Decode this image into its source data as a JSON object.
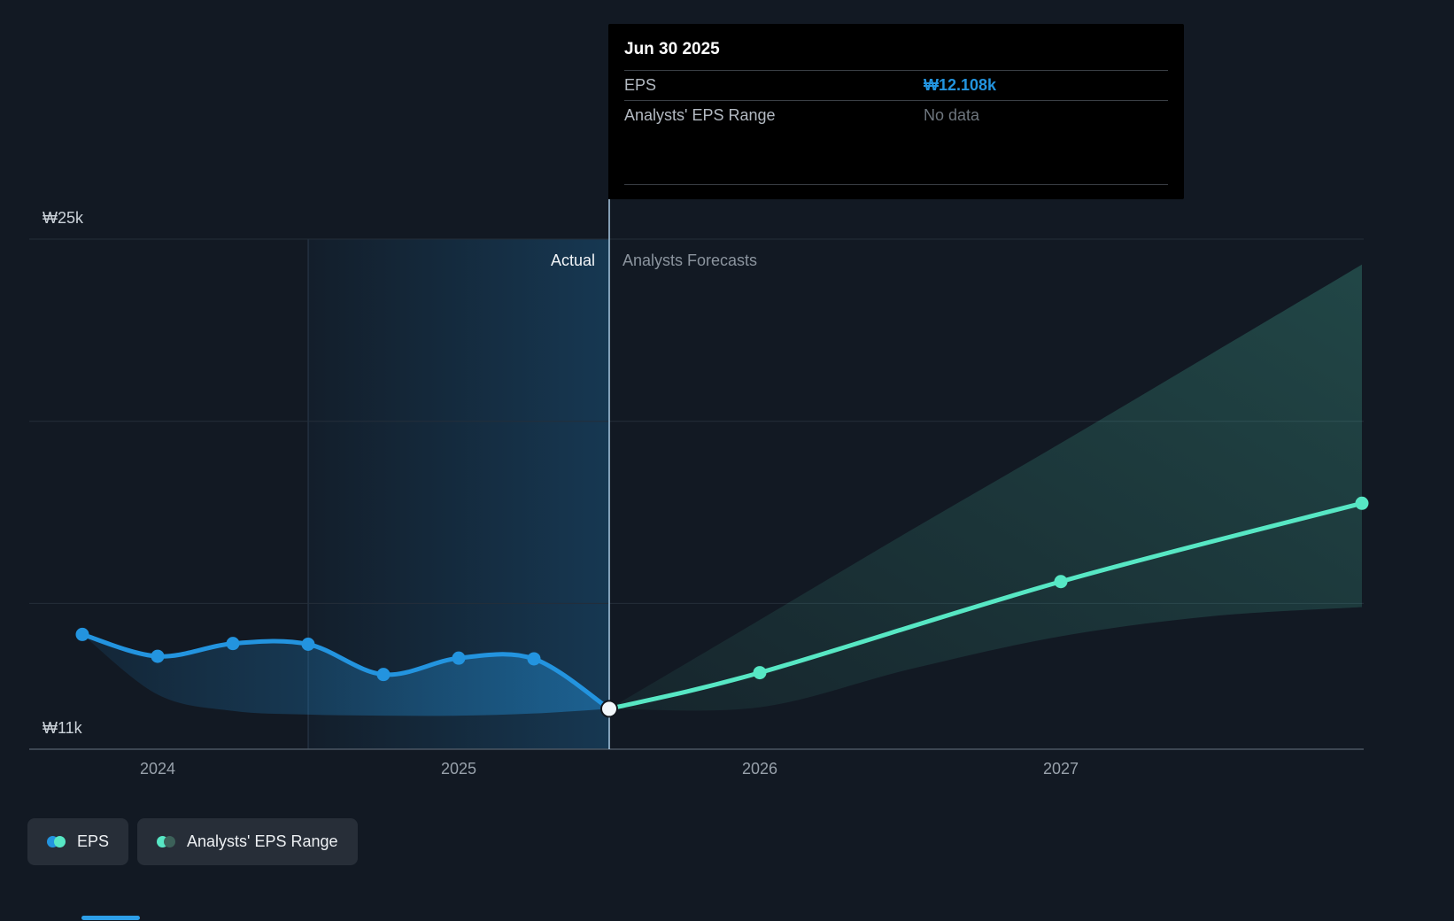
{
  "tooltip": {
    "title": "Jun 30 2025",
    "rows": [
      {
        "label": "EPS",
        "value": "₩12.108k",
        "value_color": "#2394df"
      },
      {
        "label": "Analysts' EPS Range",
        "value": "No data",
        "value_color": "#6e767e"
      }
    ]
  },
  "legend": {
    "items": [
      {
        "label": "EPS",
        "colors": [
          "#2394df",
          "#57e7c4"
        ]
      },
      {
        "label": "Analysts' EPS Range",
        "colors": [
          "#57e7c4",
          "#3c6159"
        ]
      }
    ]
  },
  "chart_data": {
    "type": "line",
    "title": "EPS actual and analysts forecast",
    "currency": "KRW",
    "ylim": [
      11,
      25
    ],
    "xlim": [
      2023.57,
      2028.0
    ],
    "grid": true,
    "y_axis": {
      "ticks": [
        {
          "value": 25,
          "label": "₩25k"
        },
        {
          "value": 11,
          "label": "₩11k"
        }
      ],
      "gridline_values": [
        25,
        20,
        15
      ],
      "baseline": 11
    },
    "x_axis": {
      "ticks": [
        {
          "value": 2024,
          "label": "2024"
        },
        {
          "value": 2025,
          "label": "2025"
        },
        {
          "value": 2026,
          "label": "2026"
        },
        {
          "value": 2027,
          "label": "2027"
        }
      ]
    },
    "divider_x": 2025.5,
    "highlight_range": {
      "from": 2024.5,
      "to": 2025.5
    },
    "phase_labels": {
      "actual": "Actual",
      "forecast": "Analysts Forecasts"
    },
    "series": [
      {
        "name": "EPS (actual)",
        "color": "#2394df",
        "x": [
          2023.75,
          2024.0,
          2024.25,
          2024.5,
          2024.75,
          2025.0,
          2025.25,
          2025.5
        ],
        "values": [
          14.15,
          13.55,
          13.9,
          13.88,
          13.05,
          13.5,
          13.48,
          12.108
        ],
        "dot_indices": [
          0,
          1,
          2,
          3,
          4,
          5,
          6
        ]
      },
      {
        "name": "EPS (analysts forecast)",
        "color": "#57e7c4",
        "x": [
          2025.5,
          2026.0,
          2027.0,
          2028.0
        ],
        "values": [
          12.108,
          13.1,
          15.6,
          17.75
        ],
        "dot_indices": [
          1,
          2,
          3
        ]
      }
    ],
    "bands": [
      {
        "name": "actual-eps-band",
        "fill_id": "gradBlueBand",
        "x": [
          2023.75,
          2024.0,
          2024.25,
          2024.5,
          2024.75,
          2025.0,
          2025.25,
          2025.5
        ],
        "upper": [
          14.15,
          13.55,
          13.9,
          13.88,
          13.05,
          13.5,
          13.48,
          12.108
        ],
        "lower": [
          14.15,
          12.5,
          12.05,
          11.95,
          11.92,
          11.92,
          11.98,
          12.108
        ]
      },
      {
        "name": "analysts-eps-range-band",
        "fill_id": "gradTealBand",
        "x": [
          2025.5,
          2026.0,
          2026.5,
          2027.0,
          2027.5,
          2028.0
        ],
        "upper": [
          12.108,
          14.55,
          17.0,
          19.4,
          21.85,
          24.3
        ],
        "lower": [
          12.108,
          12.15,
          13.2,
          14.1,
          14.65,
          14.9
        ]
      }
    ],
    "current_point": {
      "x": 2025.5,
      "value": 12.108,
      "label": "₩12.108k"
    }
  }
}
